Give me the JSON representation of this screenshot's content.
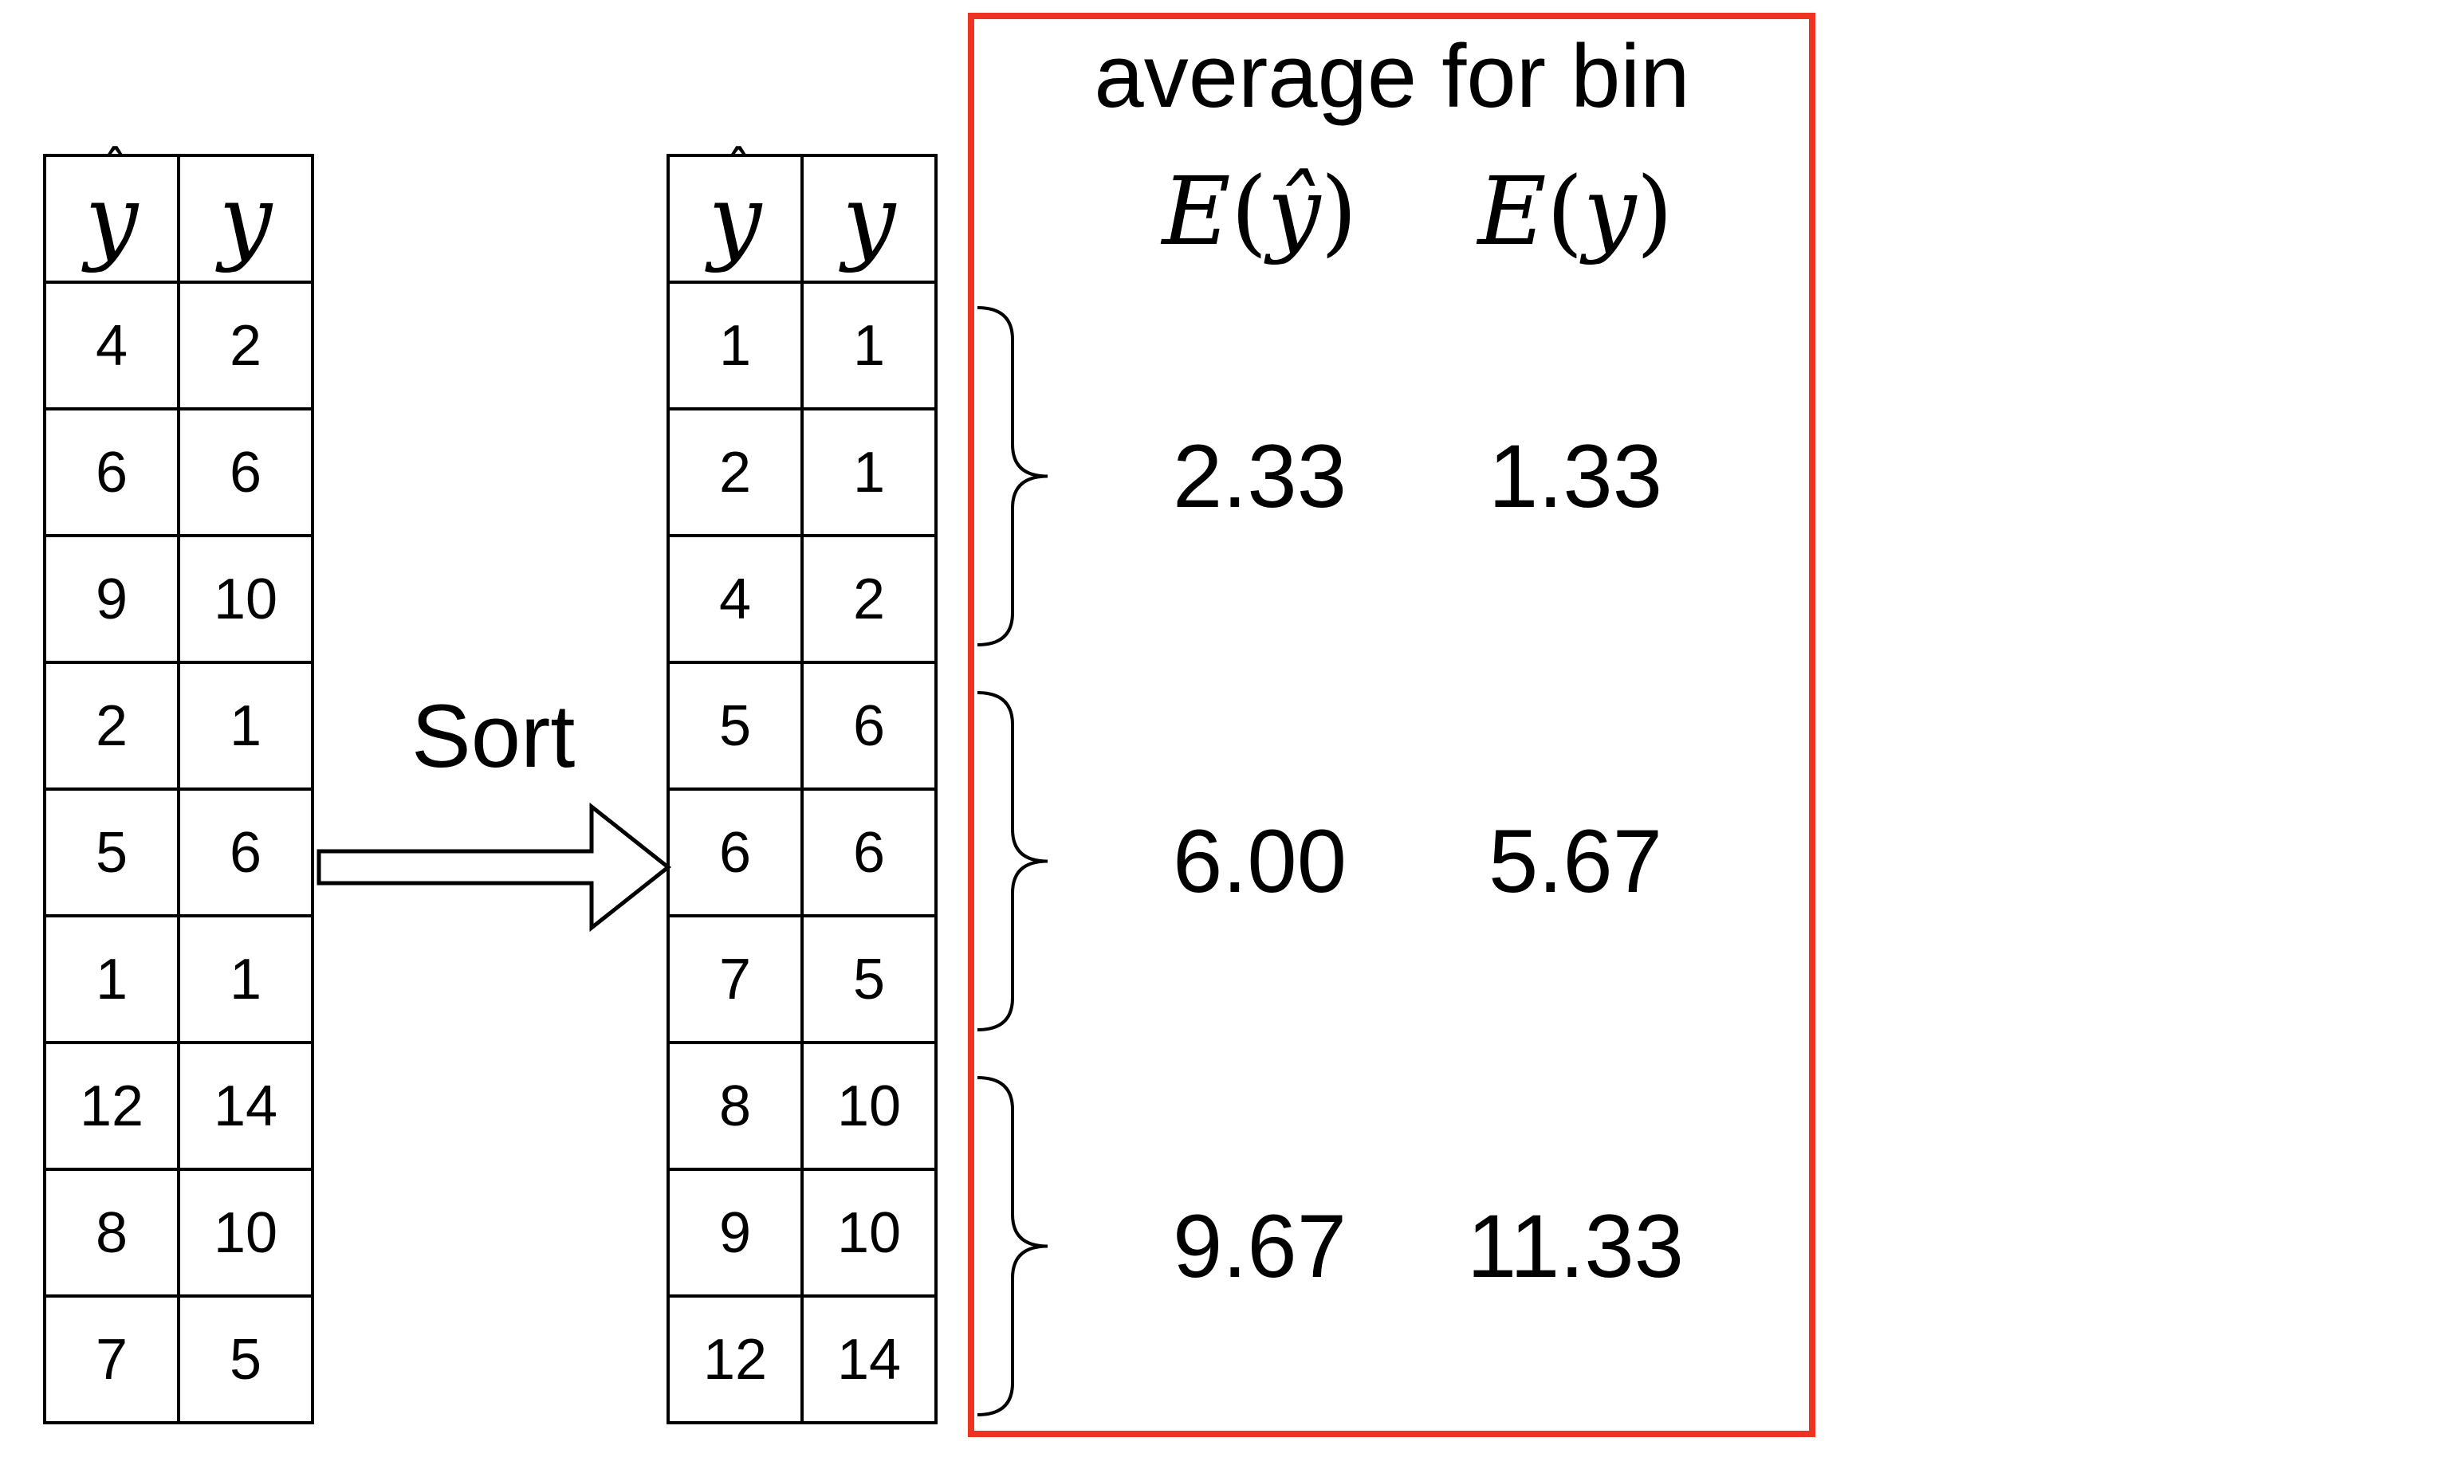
{
  "original_table": {
    "headers": [
      "ŷ",
      "y"
    ],
    "rows": [
      [
        "4",
        "2"
      ],
      [
        "6",
        "6"
      ],
      [
        "9",
        "10"
      ],
      [
        "2",
        "1"
      ],
      [
        "5",
        "6"
      ],
      [
        "1",
        "1"
      ],
      [
        "12",
        "14"
      ],
      [
        "8",
        "10"
      ],
      [
        "7",
        "5"
      ]
    ]
  },
  "sort_label": "Sort",
  "sorted_table": {
    "headers": [
      "ŷ",
      "y"
    ],
    "rows": [
      [
        "1",
        "1"
      ],
      [
        "2",
        "1"
      ],
      [
        "4",
        "2"
      ],
      [
        "5",
        "6"
      ],
      [
        "6",
        "6"
      ],
      [
        "7",
        "5"
      ],
      [
        "8",
        "10"
      ],
      [
        "9",
        "10"
      ],
      [
        "12",
        "14"
      ]
    ]
  },
  "bin_panel": {
    "title": "average for bin",
    "col_headers": [
      "E(ŷ)",
      "E(y)"
    ],
    "bins": [
      {
        "e_yhat": "2.33",
        "e_y": "1.33"
      },
      {
        "e_yhat": "6.00",
        "e_y": "5.67"
      },
      {
        "e_yhat": "9.67",
        "e_y": "11.33"
      }
    ]
  },
  "colors": {
    "highlight_border": "#ee3322",
    "text": "#000000"
  }
}
